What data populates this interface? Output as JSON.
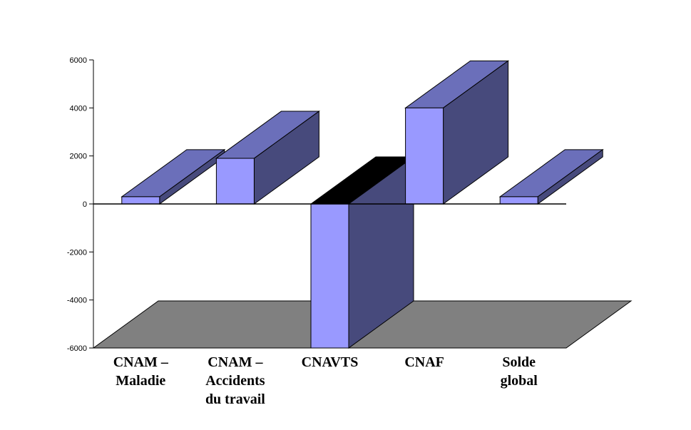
{
  "chart_data": {
    "type": "bar",
    "categories": [
      [
        "CNAM –",
        "Maladie"
      ],
      [
        "CNAM –",
        "Accidents",
        "du travail"
      ],
      [
        "CNAVTS"
      ],
      [
        "CNAF"
      ],
      [
        "Solde",
        "global"
      ]
    ],
    "values": [
      300,
      1900,
      -6000,
      4000,
      300
    ],
    "ylim": [
      -6000,
      6000
    ],
    "yticks": [
      6000,
      4000,
      2000,
      0,
      -2000,
      -4000,
      -6000
    ],
    "grid": false,
    "legend": "none",
    "three_d": true
  },
  "colors": {
    "bar_front": "#9999ff",
    "bar_top": "#6b6fba",
    "bar_side": "#474a7c",
    "bar_top_negative": "#000000",
    "floor": "#808080"
  }
}
